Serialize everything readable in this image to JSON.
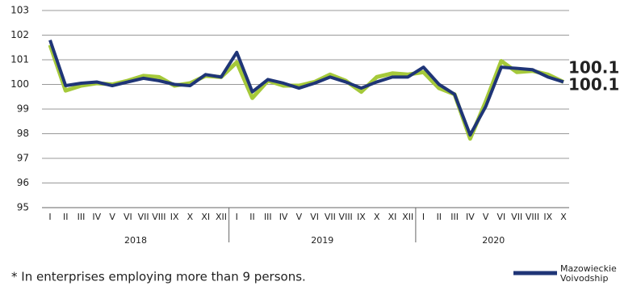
{
  "chart_data": {
    "type": "line",
    "categories": [
      "I",
      "II",
      "III",
      "IV",
      "V",
      "VI",
      "VII",
      "VIII",
      "IX",
      "X",
      "XI",
      "XII",
      "I",
      "II",
      "III",
      "IV",
      "V",
      "VI",
      "VII",
      "VIII",
      "IX",
      "X",
      "XI",
      "XII",
      "I",
      "II",
      "III",
      "IV",
      "V",
      "VI",
      "VII",
      "VIII",
      "IX",
      "X"
    ],
    "years": [
      "2018",
      "2019",
      "2020"
    ],
    "series": [
      {
        "color": "#a5c93a",
        "last_label": "100.1",
        "values": [
          101.6,
          99.75,
          99.95,
          100.05,
          100.0,
          100.15,
          100.35,
          100.3,
          99.95,
          100.05,
          100.35,
          100.3,
          100.9,
          99.45,
          100.15,
          99.95,
          99.95,
          100.1,
          100.4,
          100.15,
          99.7,
          100.3,
          100.45,
          100.4,
          100.5,
          99.85,
          99.6,
          97.8,
          99.3,
          100.95,
          100.5,
          100.55,
          100.4,
          100.1
        ]
      },
      {
        "name": "Mazowieckie Voivodship",
        "color": "#1f3577",
        "last_label": "100.1",
        "values": [
          101.8,
          99.95,
          100.05,
          100.1,
          99.95,
          100.1,
          100.25,
          100.15,
          100.0,
          99.95,
          100.4,
          100.3,
          101.3,
          99.7,
          100.2,
          100.05,
          99.85,
          100.05,
          100.3,
          100.1,
          99.85,
          100.1,
          100.3,
          100.3,
          100.7,
          100.0,
          99.6,
          97.95,
          99.1,
          100.7,
          100.65,
          100.6,
          100.3,
          100.1
        ]
      }
    ],
    "ylim": [
      95,
      103
    ],
    "yticks": [
      95,
      96,
      97,
      98,
      99,
      100,
      101,
      102,
      103
    ],
    "grid": true,
    "note": "* In enterprises employing more than 9 persons."
  }
}
